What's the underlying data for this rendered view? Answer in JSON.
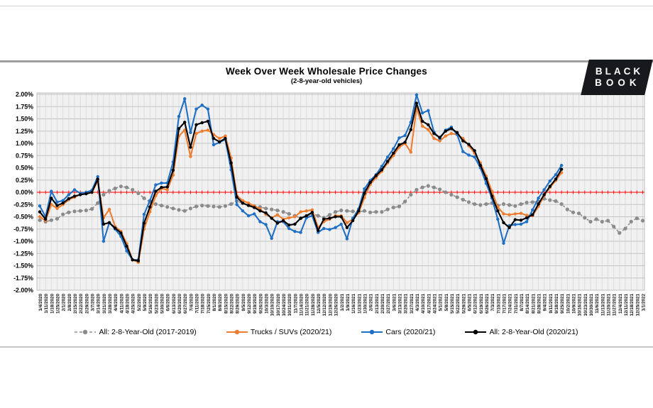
{
  "logo": {
    "line1": "BLACK",
    "line2": "BOOK"
  },
  "chart_data": {
    "type": "line",
    "title": "Week Over Week Wholesale Price Changes",
    "subtitle": "(2-8-year-old vehicles)",
    "xlabel": "",
    "ylabel": "",
    "ylim": [
      -2.0,
      2.0
    ],
    "ytick_step": 0.25,
    "ytick_labels": [
      "2.00%",
      "1.75%",
      "1.50%",
      "1.25%",
      "1.00%",
      "0.75%",
      "0.50%",
      "0.25%",
      "0.00%",
      "-0.25%",
      "-0.50%",
      "-0.75%",
      "-1.00%",
      "-1.25%",
      "-1.50%",
      "-1.75%",
      "-2.00%"
    ],
    "grid": true,
    "plot_bg": "#f1f1f1",
    "zero_line_color": "#ff0000",
    "legend_position": "bottom",
    "x": [
      "1/4/2020",
      "1/11/2020",
      "1/18/2020",
      "1/25/2020",
      "2/1/2020",
      "2/8/2020",
      "2/15/2020",
      "2/22/2020",
      "2/29/2020",
      "3/7/2020",
      "3/14/2020",
      "3/21/2020",
      "3/28/2020",
      "4/4/2020",
      "4/11/2020",
      "4/18/2020",
      "4/25/2020",
      "5/2/2020",
      "5/9/2020",
      "5/16/2020",
      "5/23/2020",
      "5/30/2020",
      "6/6/2020",
      "6/13/2020",
      "6/20/2020",
      "6/27/2020",
      "7/4/2020",
      "7/11/2020",
      "7/18/2020",
      "7/25/2020",
      "8/1/2020",
      "8/8/2020",
      "8/15/2020",
      "8/22/2020",
      "8/29/2020",
      "9/5/2020",
      "9/12/2020",
      "9/19/2020",
      "9/26/2020",
      "10/3/2020",
      "10/10/2020",
      "10/17/2020",
      "10/24/2020",
      "10/31/2020",
      "11/7/2020",
      "11/14/2020",
      "11/21/2020",
      "11/28/2020",
      "12/5/2020",
      "12/12/2020",
      "12/19/2020",
      "12/26/2020",
      "1/2/2021",
      "1/9/2021",
      "1/16/2021",
      "1/23/2021",
      "1/30/2021",
      "2/6/2021",
      "2/13/2021",
      "2/20/2021",
      "2/27/2021",
      "3/6/2021",
      "3/13/2021",
      "3/20/2021",
      "3/27/2021",
      "4/3/2021",
      "4/10/2021",
      "4/17/2021",
      "4/24/2021",
      "5/1/2021",
      "5/8/2021",
      "5/15/2021",
      "5/22/2021",
      "5/29/2021",
      "6/5/2021",
      "6/12/2021",
      "6/19/2021",
      "6/26/2021",
      "7/3/2021",
      "7/10/2021",
      "7/17/2021",
      "7/24/2021",
      "7/31/2021",
      "8/7/2021",
      "8/14/2021",
      "8/21/2021",
      "8/28/2021",
      "9/4/2021",
      "9/11/2021",
      "9/18/2021",
      "9/25/2021",
      "10/2/2021",
      "10/9/2021",
      "10/16/2021",
      "10/23/2021",
      "10/30/2021",
      "11/6/2021",
      "11/13/2021",
      "11/20/2021",
      "11/27/2021",
      "12/4/2021",
      "12/11/2021",
      "12/18/2021",
      "12/25/2021",
      "1/1/2022"
    ],
    "series": [
      {
        "name": "All: 2-8-Year-Old (2017-2019)",
        "color": "#8b8b8b",
        "dash": true,
        "values": [
          -0.57,
          -0.6,
          -0.57,
          -0.54,
          -0.45,
          -0.41,
          -0.39,
          -0.38,
          -0.37,
          -0.34,
          -0.22,
          -0.05,
          0.03,
          0.08,
          0.12,
          0.1,
          0.05,
          -0.02,
          -0.12,
          -0.2,
          -0.24,
          -0.27,
          -0.3,
          -0.33,
          -0.36,
          -0.38,
          -0.33,
          -0.29,
          -0.27,
          -0.28,
          -0.29,
          -0.3,
          -0.28,
          -0.24,
          -0.18,
          -0.22,
          -0.26,
          -0.28,
          -0.3,
          -0.33,
          -0.35,
          -0.37,
          -0.4,
          -0.44,
          -0.48,
          -0.53,
          -0.5,
          -0.44,
          -0.48,
          -0.52,
          -0.46,
          -0.4,
          -0.37,
          -0.38,
          -0.39,
          -0.4,
          -0.38,
          -0.41,
          -0.4,
          -0.4,
          -0.35,
          -0.31,
          -0.29,
          -0.19,
          -0.05,
          0.05,
          0.1,
          0.13,
          0.1,
          0.06,
          0.0,
          -0.05,
          -0.1,
          -0.15,
          -0.2,
          -0.24,
          -0.26,
          -0.24,
          -0.22,
          -0.27,
          -0.24,
          -0.26,
          -0.28,
          -0.24,
          -0.21,
          -0.2,
          -0.19,
          -0.13,
          -0.16,
          -0.18,
          -0.24,
          -0.35,
          -0.41,
          -0.43,
          -0.52,
          -0.6,
          -0.55,
          -0.6,
          -0.58,
          -0.7,
          -0.83,
          -0.74,
          -0.6,
          -0.53,
          -0.58
        ]
      },
      {
        "name": "Trucks / SUVs (2020/21)",
        "color": "#ed7d31",
        "dash": false,
        "values": [
          -0.5,
          -0.58,
          -0.25,
          -0.33,
          -0.25,
          -0.15,
          -0.1,
          -0.04,
          -0.02,
          0.0,
          0.23,
          -0.52,
          -0.35,
          -0.7,
          -0.8,
          -1.05,
          -1.38,
          -1.43,
          -0.75,
          -0.4,
          -0.07,
          0.08,
          0.05,
          0.35,
          1.15,
          1.27,
          0.73,
          1.2,
          1.25,
          1.27,
          1.18,
          1.1,
          1.15,
          0.7,
          -0.07,
          -0.17,
          -0.22,
          -0.28,
          -0.34,
          -0.45,
          -0.52,
          -0.46,
          -0.55,
          -0.52,
          -0.5,
          -0.4,
          -0.38,
          -0.36,
          -0.72,
          -0.6,
          -0.55,
          -0.48,
          -0.48,
          -0.62,
          -0.55,
          -0.42,
          -0.11,
          0.16,
          0.3,
          0.43,
          0.6,
          0.75,
          0.92,
          1.0,
          0.82,
          1.72,
          1.35,
          1.28,
          1.1,
          1.05,
          1.15,
          1.2,
          1.18,
          1.1,
          0.95,
          0.8,
          0.6,
          0.33,
          0.02,
          -0.3,
          -0.44,
          -0.46,
          -0.44,
          -0.43,
          -0.47,
          -0.48,
          -0.29,
          -0.07,
          0.1,
          0.24,
          0.4
        ]
      },
      {
        "name": "Cars (2020/21)",
        "color": "#1f6fc4",
        "dash": false,
        "values": [
          -0.28,
          -0.5,
          0.02,
          -0.2,
          -0.17,
          -0.05,
          0.05,
          -0.02,
          0.0,
          0.04,
          0.32,
          -1.0,
          -0.62,
          -0.75,
          -0.9,
          -1.2,
          -1.38,
          -1.38,
          -0.45,
          -0.17,
          0.15,
          0.19,
          0.19,
          0.62,
          1.55,
          1.91,
          1.22,
          1.7,
          1.78,
          1.7,
          0.97,
          1.02,
          1.08,
          0.46,
          -0.25,
          -0.38,
          -0.48,
          -0.44,
          -0.6,
          -0.66,
          -0.94,
          -0.6,
          -0.6,
          -0.74,
          -0.8,
          -0.82,
          -0.52,
          -0.48,
          -0.82,
          -0.74,
          -0.76,
          -0.72,
          -0.65,
          -0.95,
          -0.53,
          -0.34,
          0.07,
          0.24,
          0.36,
          0.53,
          0.72,
          0.89,
          1.11,
          1.16,
          1.43,
          1.99,
          1.62,
          1.67,
          1.23,
          1.1,
          1.27,
          1.33,
          1.18,
          0.83,
          0.76,
          0.72,
          0.5,
          0.18,
          -0.12,
          -0.55,
          -1.04,
          -0.68,
          -0.66,
          -0.65,
          -0.6,
          -0.36,
          -0.12,
          0.05,
          0.23,
          0.36,
          0.55
        ]
      },
      {
        "name": "All: 2-8-Year-Old (2020/21)",
        "color": "#000000",
        "dash": false,
        "values": [
          -0.4,
          -0.55,
          -0.12,
          -0.27,
          -0.22,
          -0.13,
          -0.08,
          -0.05,
          -0.03,
          0.0,
          0.27,
          -0.65,
          -0.62,
          -0.73,
          -0.83,
          -1.1,
          -1.38,
          -1.4,
          -0.63,
          -0.3,
          0.02,
          0.1,
          0.11,
          0.45,
          1.3,
          1.43,
          0.92,
          1.38,
          1.42,
          1.45,
          1.1,
          1.03,
          1.1,
          0.6,
          -0.1,
          -0.22,
          -0.27,
          -0.31,
          -0.38,
          -0.42,
          -0.53,
          -0.63,
          -0.58,
          -0.67,
          -0.65,
          -0.53,
          -0.48,
          -0.41,
          -0.78,
          -0.55,
          -0.53,
          -0.5,
          -0.5,
          -0.72,
          -0.58,
          -0.38,
          -0.02,
          0.2,
          0.34,
          0.46,
          0.63,
          0.8,
          0.97,
          1.02,
          1.28,
          1.82,
          1.45,
          1.38,
          1.2,
          1.12,
          1.25,
          1.3,
          1.22,
          1.05,
          0.98,
          0.85,
          0.55,
          0.28,
          -0.08,
          -0.38,
          -0.62,
          -0.72,
          -0.56,
          -0.57,
          -0.52,
          -0.46,
          -0.24,
          -0.05,
          0.12,
          0.27,
          0.47
        ]
      }
    ]
  }
}
